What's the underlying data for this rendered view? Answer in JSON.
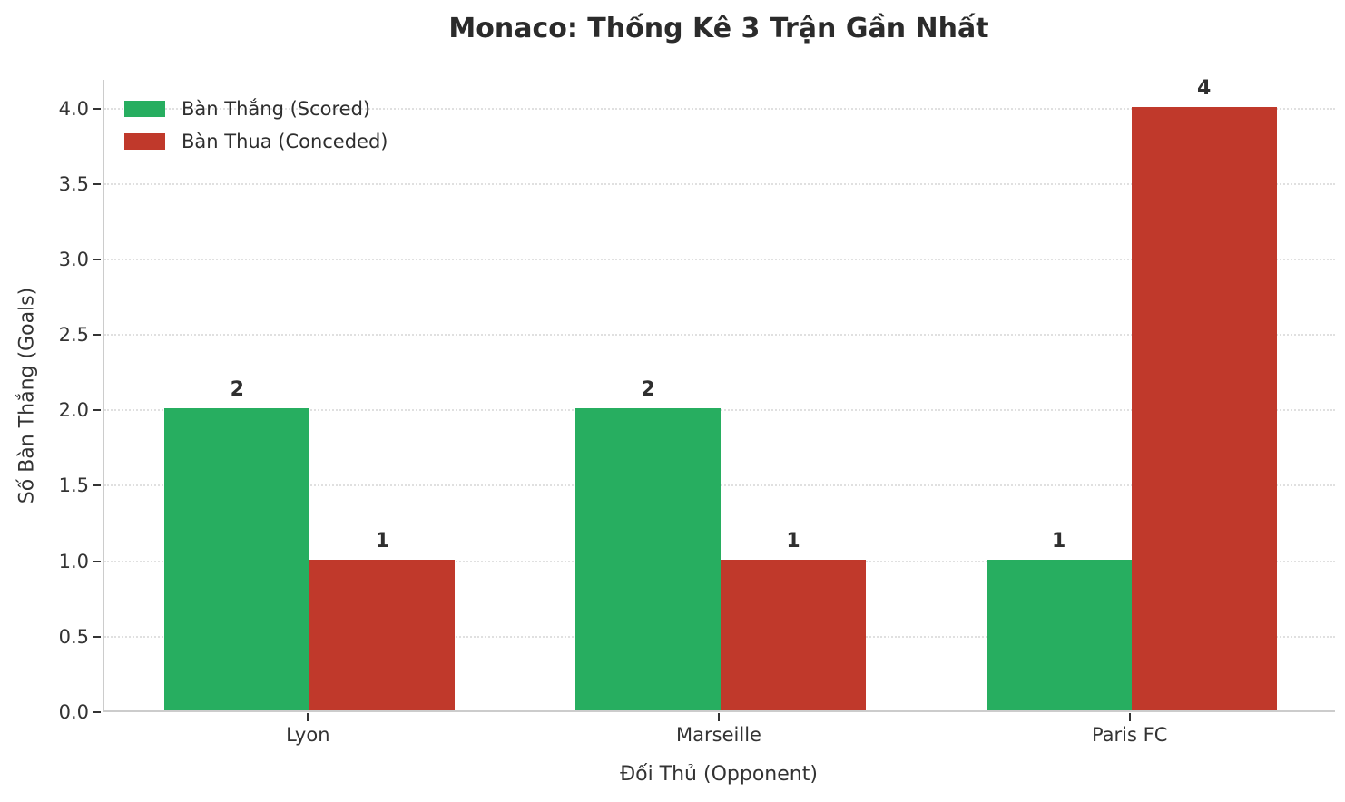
{
  "chart_data": {
    "type": "bar",
    "title": "Monaco: Thống Kê 3 Trận Gần Nhất",
    "xlabel": "Đối Thủ (Opponent)",
    "ylabel": "Số Bàn Thắng (Goals)",
    "categories": [
      "Lyon",
      "Marseille",
      "Paris FC"
    ],
    "series": [
      {
        "name": "Bàn Thắng (Scored)",
        "color": "#27ae60",
        "values": [
          2,
          2,
          1
        ]
      },
      {
        "name": "Bàn Thua (Conceded)",
        "color": "#c0392b",
        "values": [
          1,
          1,
          4
        ]
      }
    ],
    "yticks": [
      0.0,
      0.5,
      1.0,
      1.5,
      2.0,
      2.5,
      3.0,
      3.5,
      4.0
    ],
    "ylim": [
      0,
      4.19
    ],
    "grid": "horizontal-dotted",
    "legend_position": "upper-left",
    "bar_value_labels": [
      [
        2,
        2,
        1
      ],
      [
        1,
        1,
        4
      ]
    ]
  }
}
